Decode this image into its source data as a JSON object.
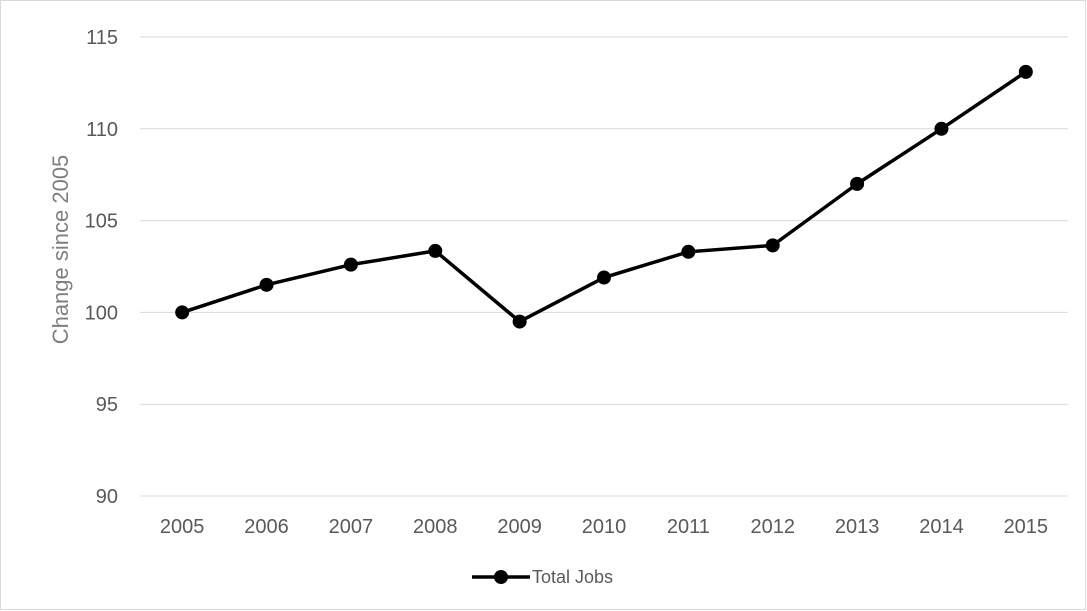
{
  "chart_data": {
    "type": "line",
    "title": "",
    "xlabel": "",
    "ylabel": "Change since 2005",
    "categories": [
      "2005",
      "2006",
      "2007",
      "2008",
      "2009",
      "2010",
      "2011",
      "2012",
      "2013",
      "2014",
      "2015"
    ],
    "series": [
      {
        "name": "Total Jobs",
        "color": "#000000",
        "marker": "circle",
        "values": [
          100,
          101.5,
          102.6,
          103.35,
          99.5,
          101.9,
          103.3,
          103.65,
          107.0,
          110.0,
          113.1
        ]
      }
    ],
    "ylim": [
      90,
      115
    ],
    "yticks": [
      90,
      95,
      100,
      105,
      110,
      115
    ],
    "grid": "horizontal",
    "legend_position": "bottom"
  }
}
